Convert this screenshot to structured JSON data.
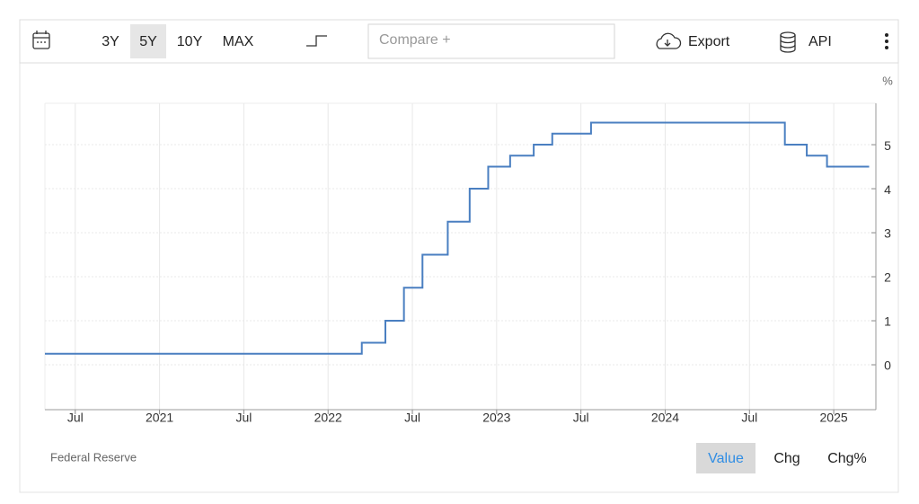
{
  "toolbar": {
    "range_buttons": [
      "3Y",
      "5Y",
      "10Y",
      "MAX"
    ],
    "selected_range_index": 1,
    "compare_placeholder": "Compare +",
    "export": "Export",
    "api": "API"
  },
  "chart_data": {
    "type": "step",
    "y_unit": "%",
    "source": "Federal Reserve",
    "x": [
      2020.32,
      2022.2,
      2022.34,
      2022.45,
      2022.56,
      2022.71,
      2022.84,
      2022.95,
      2023.08,
      2023.22,
      2023.33,
      2023.56,
      2024.71,
      2024.84,
      2024.96,
      2025.21
    ],
    "values": [
      0.25,
      0.5,
      1,
      1.75,
      2.5,
      3.25,
      4,
      4.5,
      4.75,
      5,
      5.25,
      5.5,
      5,
      4.75,
      4.5,
      4.5
    ],
    "color": "#4a7fc1",
    "xlim": [
      2020.32,
      2025.25
    ],
    "xticks": [
      {
        "value": 2020.5,
        "label": "Jul"
      },
      2021,
      {
        "value": 2021.5,
        "label": "Jul"
      },
      2022,
      {
        "value": 2022.5,
        "label": "Jul"
      },
      2023,
      {
        "value": 2023.5,
        "label": "Jul"
      },
      2024,
      {
        "value": 2024.5,
        "label": "Jul"
      },
      2025
    ],
    "ylim": [
      -1.02,
      5.94
    ],
    "yticks": [
      0,
      1,
      2,
      3,
      4,
      5
    ],
    "grid": true
  },
  "view_buttons": [
    "Value",
    "Chg",
    "Chg%"
  ],
  "selected_view_index": 0
}
